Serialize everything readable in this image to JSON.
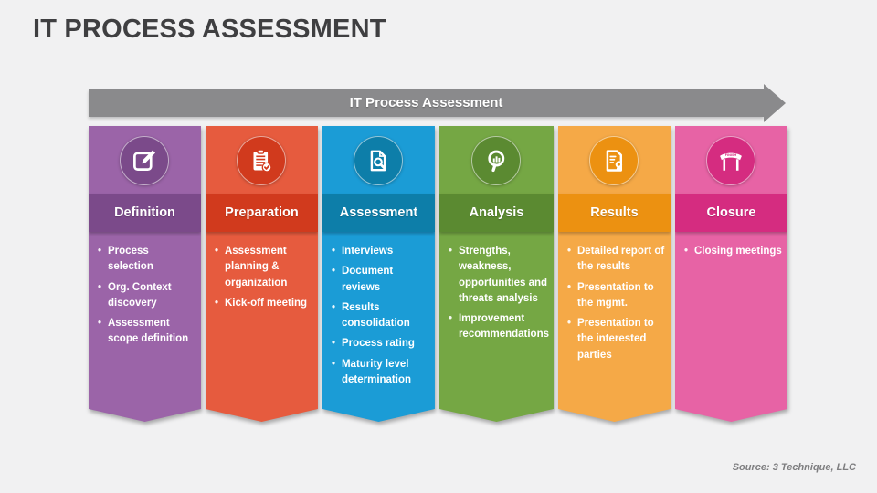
{
  "slide": {
    "title": "IT PROCESS ASSESSMENT",
    "banner_label": "IT Process Assessment",
    "source": "Source: 3 Technique, LLC"
  },
  "colors": {
    "background": "#f1f1f2",
    "title_text": "#3f3f41",
    "banner_fill": "#8a8a8c",
    "banner_text": "#ffffff"
  },
  "columns": [
    {
      "label": "Definition",
      "icon": "pencil-edit-icon",
      "color_light": "#9b64a8",
      "color_dark": "#7b4a8a",
      "bullets": [
        "Process selection",
        "Org. Context discovery",
        "Assessment scope definition"
      ]
    },
    {
      "label": "Preparation",
      "icon": "clipboard-check-icon",
      "color_light": "#e65b3e",
      "color_dark": "#d13a1d",
      "bullets": [
        "Assessment planning & organization",
        "Kick-off meeting"
      ]
    },
    {
      "label": "Assessment",
      "icon": "document-magnifier-icon",
      "color_light": "#1b9cd6",
      "color_dark": "#0d7ea9",
      "bullets": [
        "Interviews",
        "Document reviews",
        "Results consolidation",
        "Process rating",
        "Maturity level determination"
      ]
    },
    {
      "label": "Analysis",
      "icon": "magnifier-chart-icon",
      "color_light": "#75a744",
      "color_dark": "#5b8a31",
      "bullets": [
        "Strengths, weakness, opportunities and threats analysis",
        "Improvement recommendations"
      ]
    },
    {
      "label": "Results",
      "icon": "report-ribbon-icon",
      "color_light": "#f5a947",
      "color_dark": "#ec9111",
      "bullets": [
        "Detailed report of the results",
        "Presentation to the mgmt.",
        "Presentation to the interested parties"
      ]
    },
    {
      "label": "Closure",
      "icon": "finish-arch-icon",
      "color_light": "#e763a5",
      "color_dark": "#d52c80",
      "bullets": [
        "Closing meetings"
      ]
    }
  ]
}
